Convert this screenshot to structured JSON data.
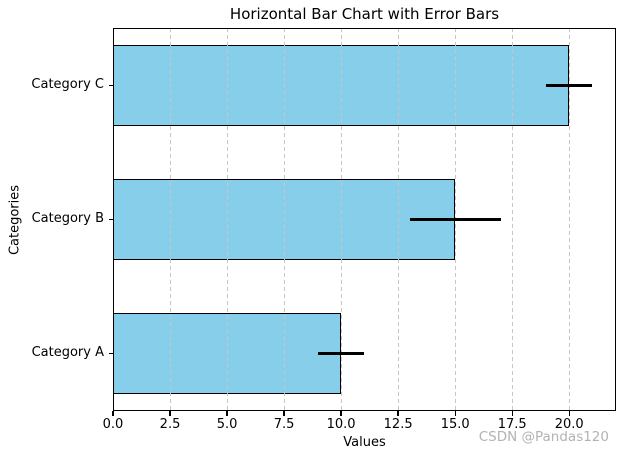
{
  "watermark": "CSDN @Pandas120",
  "chart_data": {
    "type": "bar",
    "orientation": "horizontal",
    "title": "Horizontal Bar Chart with Error Bars",
    "xlabel": "Values",
    "ylabel": "Categories",
    "categories": [
      "Category A",
      "Category B",
      "Category C"
    ],
    "values": [
      10,
      15,
      20
    ],
    "xerr": [
      1,
      2,
      1
    ],
    "xticks": [
      0,
      2.5,
      5,
      7.5,
      10,
      12.5,
      15,
      17.5,
      20
    ],
    "xtick_labels": [
      "0.0",
      "2.5",
      "5.0",
      "7.5",
      "10.0",
      "12.5",
      "15.0",
      "17.5",
      "20.0"
    ],
    "xlim": [
      0,
      22.05
    ],
    "ylim": [
      -0.43,
      2.43
    ],
    "bar_height": 0.6,
    "grid": "vertical dashed gridlines drawn above bars",
    "legend": "none",
    "error_caps": "none",
    "colors": {
      "bar_fill": "#87CEEB",
      "bar_edge": "#000000",
      "error_bar": "#000000",
      "grid": "#c6c6c6",
      "text": "#000000",
      "watermark": "#b3b3b3",
      "background": "#ffffff"
    }
  }
}
